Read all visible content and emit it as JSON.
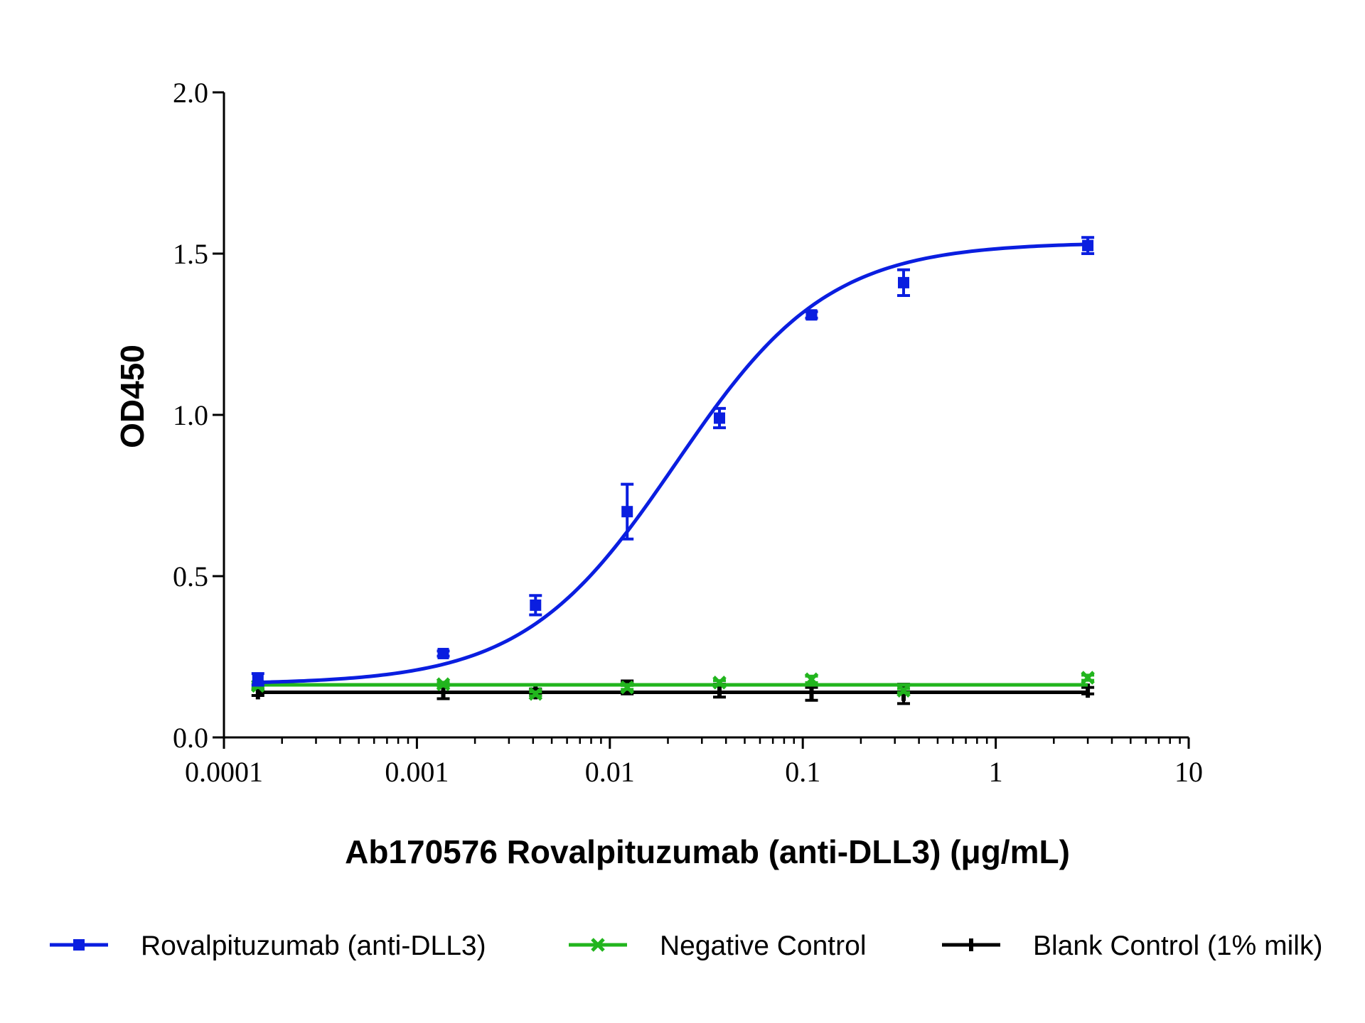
{
  "chart_data": {
    "type": "scatter",
    "xlabel": "Ab170576 Rovalpituzumab (anti-DLL3) (μg/mL)",
    "ylabel": "OD450",
    "x_scale": "log",
    "xlim": [
      0.0001,
      10
    ],
    "ylim": [
      0.0,
      2.0
    ],
    "x_ticks": [
      0.0001,
      0.001,
      0.01,
      0.1,
      1,
      10
    ],
    "x_tick_labels": [
      "0.0001",
      "0.001",
      "0.01",
      "0.1",
      "1",
      "10"
    ],
    "y_ticks": [
      0.0,
      0.5,
      1.0,
      1.5,
      2.0
    ],
    "y_tick_labels": [
      "0.0",
      "0.5",
      "1.0",
      "1.5",
      "2.0"
    ],
    "grid": false,
    "legend_position": "bottom",
    "series": [
      {
        "name": "Rovalpituzumab (anti-DLL3)",
        "color": "#0a1ee0",
        "marker": "square",
        "fit": "4PL",
        "fit_params": {
          "bottom": 0.165,
          "top": 1.535,
          "ec50": 0.022,
          "hill": 1.1
        },
        "x": [
          0.00015,
          0.00137,
          0.00412,
          0.0123,
          0.037,
          0.111,
          0.333,
          3.0
        ],
        "y": [
          0.18,
          0.26,
          0.41,
          0.7,
          0.99,
          1.31,
          1.41,
          1.525
        ],
        "err": [
          0.018,
          0.008,
          0.03,
          0.085,
          0.03,
          0.01,
          0.04,
          0.025
        ]
      },
      {
        "name": "Negative Control",
        "color": "#22b51e",
        "marker": "x",
        "fit_value": 0.163,
        "x": [
          0.00015,
          0.00137,
          0.00412,
          0.0123,
          0.037,
          0.111,
          0.333,
          3.0
        ],
        "y": [
          0.16,
          0.165,
          0.135,
          0.155,
          0.17,
          0.18,
          0.145,
          0.185
        ],
        "err": [
          0.006,
          0.006,
          0.006,
          0.006,
          0.006,
          0.01,
          0.006,
          0.008
        ]
      },
      {
        "name": "Blank Control (1% milk)",
        "color": "#000000",
        "marker": "bar",
        "fit_value": 0.14,
        "x": [
          0.00015,
          0.00137,
          0.00412,
          0.0123,
          0.037,
          0.111,
          0.333,
          3.0
        ],
        "y": [
          0.14,
          0.14,
          0.14,
          0.155,
          0.145,
          0.135,
          0.135,
          0.145
        ],
        "err": [
          0.01,
          0.02,
          0.01,
          0.02,
          0.02,
          0.02,
          0.03,
          0.01
        ]
      }
    ]
  }
}
